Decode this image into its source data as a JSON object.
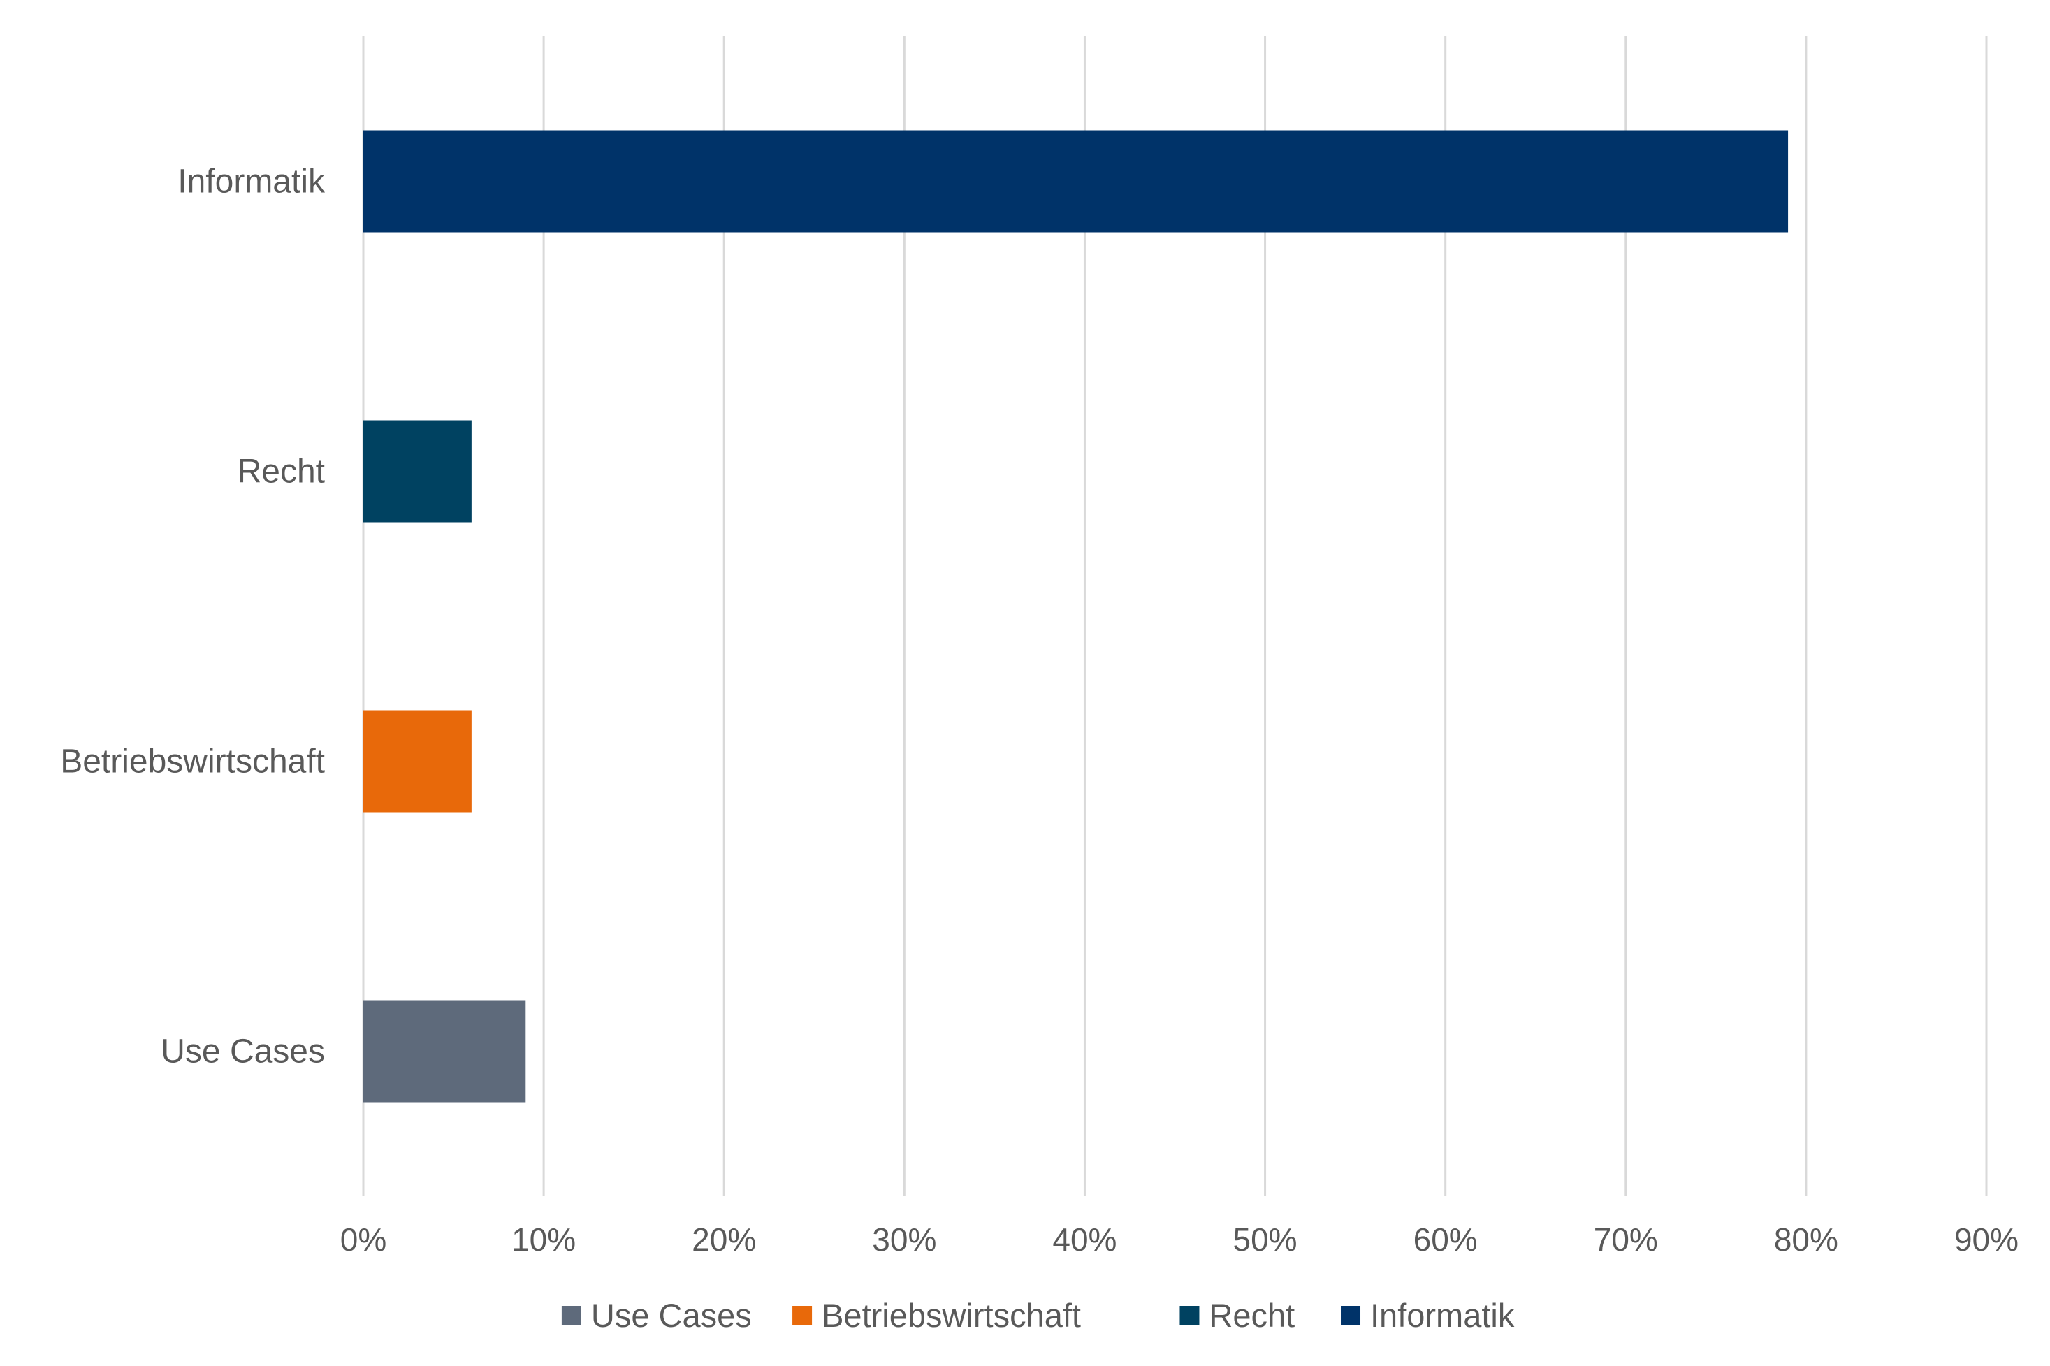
{
  "chart_data": {
    "type": "bar",
    "orientation": "horizontal",
    "title": "",
    "xlabel": "",
    "ylabel": "",
    "categories": [
      "Use Cases",
      "Betriebswirtschaft",
      "Recht",
      "Informatik"
    ],
    "values": [
      9,
      6,
      6,
      79
    ],
    "colors": [
      "#5E6A7B",
      "#E8690A",
      "#004261",
      "#003369"
    ],
    "xlim": [
      0,
      90
    ],
    "xticks": [
      "0%",
      "10%",
      "20%",
      "30%",
      "40%",
      "50%",
      "60%",
      "70%",
      "80%",
      "90%"
    ],
    "grid": "vertical",
    "gridline_color": "#D9D9D9",
    "text_color": "#595959",
    "legend": {
      "position": "bottom",
      "entries": [
        "Use Cases",
        "Betriebswirtschaft",
        "Recht",
        "Informatik"
      ]
    }
  }
}
